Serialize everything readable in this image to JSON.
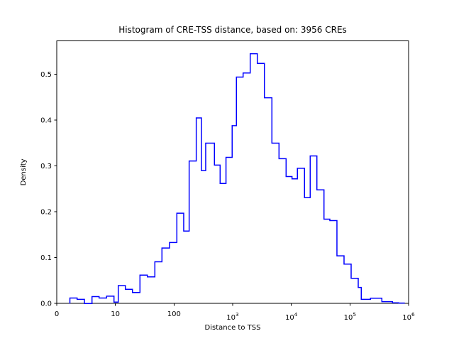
{
  "figure": {
    "title": "Histogram of CRE-TSS distance, based on: 3956 CREs",
    "xlabel": "Distance to TSS",
    "ylabel": "Density"
  },
  "chart_data": {
    "type": "histogram-step",
    "title": "Histogram of CRE-TSS distance, based on: 3956 CREs",
    "xlabel": "Distance to TSS",
    "ylabel": "Density",
    "n_samples_label": "3956 CREs",
    "x_scale": "symlog-decades",
    "line_color": "#0000ff",
    "axis_color": "#000000",
    "background_color": "#ffffff",
    "grid": false,
    "legend": false,
    "xlim_log10": [
      0,
      6
    ],
    "ylim": [
      0,
      0.573
    ],
    "x_ticks": [
      {
        "label": "0",
        "log10": 0,
        "power": false
      },
      {
        "label": "10",
        "log10": 1,
        "power": false
      },
      {
        "label": "100",
        "log10": 2,
        "power": false
      },
      {
        "base": "10",
        "exp": "3",
        "log10": 3,
        "power": true
      },
      {
        "base": "10",
        "exp": "4",
        "log10": 4,
        "power": true
      },
      {
        "base": "10",
        "exp": "5",
        "log10": 5,
        "power": true
      },
      {
        "base": "10",
        "exp": "6",
        "log10": 6,
        "power": true
      }
    ],
    "y_ticks": [
      {
        "label": "0.0",
        "value": 0.0
      },
      {
        "label": "0.1",
        "value": 0.1
      },
      {
        "label": "0.2",
        "value": 0.2
      },
      {
        "label": "0.3",
        "value": 0.3
      },
      {
        "label": "0.4",
        "value": 0.4
      },
      {
        "label": "0.5",
        "value": 0.5
      }
    ],
    "bin_edges_log10": [
      0.224,
      0.347,
      0.472,
      0.601,
      0.722,
      0.85,
      0.976,
      1.049,
      1.17,
      1.291,
      1.419,
      1.545,
      1.673,
      1.794,
      1.923,
      2.048,
      2.165,
      2.258,
      2.379,
      2.467,
      2.54,
      2.689,
      2.786,
      2.886,
      2.991,
      3.064,
      3.178,
      3.299,
      3.42,
      3.541,
      3.669,
      3.79,
      3.911,
      4.012,
      4.104,
      4.225,
      4.322,
      4.436,
      4.557,
      4.657,
      4.778,
      4.899,
      5.02,
      5.141,
      5.193,
      5.35,
      5.544,
      5.725,
      5.83,
      5.927
    ],
    "densities": [
      0.012,
      0.009,
      0.0,
      0.015,
      0.012,
      0.016,
      0.003,
      0.039,
      0.031,
      0.024,
      0.062,
      0.058,
      0.091,
      0.121,
      0.133,
      0.197,
      0.158,
      0.311,
      0.405,
      0.29,
      0.35,
      0.302,
      0.262,
      0.319,
      0.388,
      0.494,
      0.503,
      0.545,
      0.524,
      0.449,
      0.35,
      0.316,
      0.277,
      0.272,
      0.295,
      0.231,
      0.322,
      0.248,
      0.184,
      0.181,
      0.104,
      0.086,
      0.055,
      0.035,
      0.009,
      0.0115,
      0.004,
      0.0015,
      0.0008
    ]
  }
}
